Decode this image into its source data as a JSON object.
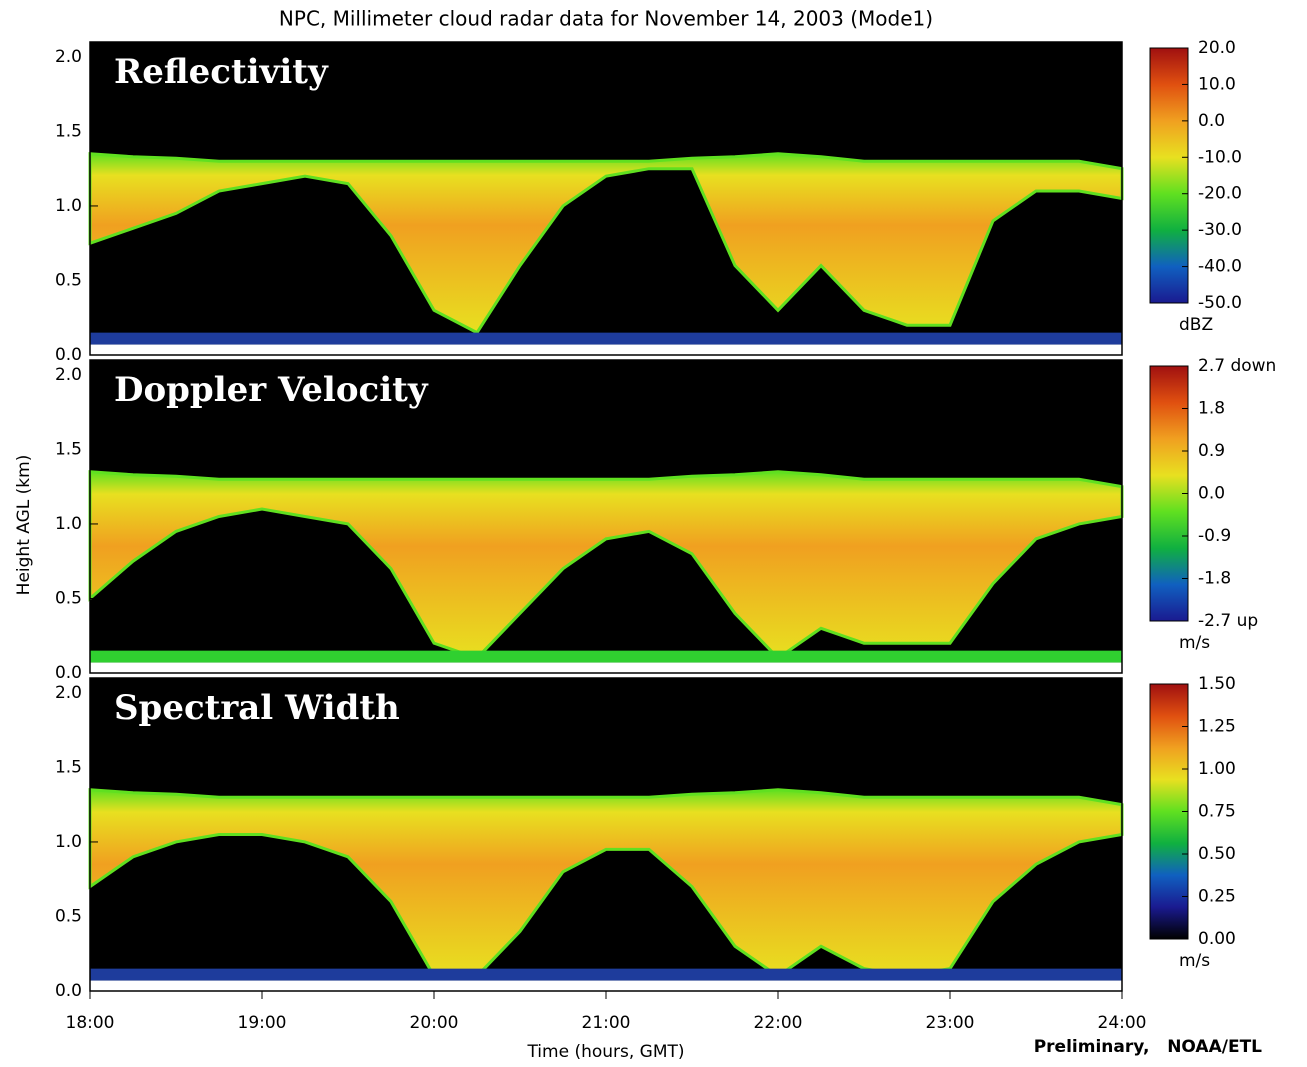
{
  "title": "NPC, Millimeter cloud radar data for November 14, 2003 (Mode1)",
  "y_label": "Height AGL (km)",
  "x_label": "Time (hours, GMT)",
  "credit": "Preliminary,   NOAA/ETL",
  "chart_data": [
    {
      "type": "heatmap",
      "title": "Reflectivity",
      "x": [
        18,
        18.25,
        18.5,
        18.75,
        19,
        19.25,
        19.5,
        19.75,
        20,
        20.25,
        20.5,
        20.75,
        21,
        21.25,
        21.5,
        21.75,
        22,
        22.25,
        22.5,
        22.75,
        23,
        23.25,
        23.5,
        23.75,
        24
      ],
      "cloud_top": [
        1.35,
        1.33,
        1.32,
        1.3,
        1.3,
        1.3,
        1.3,
        1.3,
        1.3,
        1.3,
        1.3,
        1.3,
        1.3,
        1.3,
        1.32,
        1.33,
        1.35,
        1.33,
        1.3,
        1.3,
        1.3,
        1.3,
        1.3,
        1.3,
        1.25
      ],
      "cloud_base": [
        0.75,
        0.85,
        0.95,
        1.1,
        1.15,
        1.2,
        1.15,
        0.8,
        0.3,
        0.15,
        0.6,
        1.0,
        1.2,
        1.25,
        1.25,
        0.6,
        0.3,
        0.6,
        0.3,
        0.2,
        0.2,
        0.9,
        1.1,
        1.1,
        1.05
      ],
      "xlim": [
        18,
        24
      ],
      "ylim": [
        0,
        2.1
      ],
      "yticks": [
        {
          "value": 0,
          "label": "0.0"
        },
        0.5,
        {
          "value": 1,
          "label": "1.0"
        },
        1.5,
        {
          "value": 2,
          "label": "2.0"
        }
      ],
      "colormap": [
        "#1a1a90",
        "#1060c0",
        "#10b040",
        "#60e020",
        "#e8e020",
        "#f0a020",
        "#e05010",
        "#a01010"
      ],
      "clutter_color": "#1e3c9c",
      "cbar_lim": [
        -50,
        20
      ],
      "cbar_ticks": [
        {
          "value": 20,
          "label": "20.0"
        },
        {
          "value": 10,
          "label": "10.0"
        },
        {
          "value": 0,
          "label": "0.0"
        },
        {
          "value": -10,
          "label": "-10.0"
        },
        {
          "value": -20,
          "label": "-20.0"
        },
        {
          "value": -30,
          "label": "-30.0"
        },
        {
          "value": -40,
          "label": "-40.0"
        },
        {
          "value": -50,
          "label": "-50.0"
        }
      ],
      "cbar_unit": "dBZ"
    },
    {
      "type": "heatmap",
      "title": "Doppler Velocity",
      "x": [
        18,
        18.25,
        18.5,
        18.75,
        19,
        19.25,
        19.5,
        19.75,
        20,
        20.25,
        20.5,
        20.75,
        21,
        21.25,
        21.5,
        21.75,
        22,
        22.25,
        22.5,
        22.75,
        23,
        23.25,
        23.5,
        23.75,
        24
      ],
      "cloud_top": [
        1.35,
        1.33,
        1.32,
        1.3,
        1.3,
        1.3,
        1.3,
        1.3,
        1.3,
        1.3,
        1.3,
        1.3,
        1.3,
        1.3,
        1.32,
        1.33,
        1.35,
        1.33,
        1.3,
        1.3,
        1.3,
        1.3,
        1.3,
        1.3,
        1.25
      ],
      "cloud_base": [
        0.5,
        0.75,
        0.95,
        1.05,
        1.1,
        1.05,
        1.0,
        0.7,
        0.2,
        0.1,
        0.4,
        0.7,
        0.9,
        0.95,
        0.8,
        0.4,
        0.1,
        0.3,
        0.2,
        0.2,
        0.2,
        0.6,
        0.9,
        1.0,
        1.05
      ],
      "xlim": [
        18,
        24
      ],
      "ylim": [
        0,
        2.1
      ],
      "yticks": [
        {
          "value": 0,
          "label": "0.0"
        },
        0.5,
        {
          "value": 1,
          "label": "1.0"
        },
        1.5,
        {
          "value": 2,
          "label": "2.0"
        }
      ],
      "colormap": [
        "#1a1a90",
        "#1060c0",
        "#10b040",
        "#60e020",
        "#e8e020",
        "#f0a020",
        "#e05010",
        "#a01010"
      ],
      "clutter_color": "#30d030",
      "cbar_lim": [
        -2.7,
        2.7
      ],
      "cbar_ticks": [
        {
          "value": 2.7,
          "label": "2.7 down"
        },
        1.8,
        0.9,
        {
          "value": 0,
          "label": "0.0"
        },
        -0.9,
        -1.8,
        {
          "value": -2.7,
          "label": "-2.7 up"
        }
      ],
      "cbar_unit": "m/s"
    },
    {
      "type": "heatmap",
      "title": "Spectral Width",
      "x": [
        18,
        18.25,
        18.5,
        18.75,
        19,
        19.25,
        19.5,
        19.75,
        20,
        20.25,
        20.5,
        20.75,
        21,
        21.25,
        21.5,
        21.75,
        22,
        22.25,
        22.5,
        22.75,
        23,
        23.25,
        23.5,
        23.75,
        24
      ],
      "cloud_top": [
        1.35,
        1.33,
        1.32,
        1.3,
        1.3,
        1.3,
        1.3,
        1.3,
        1.3,
        1.3,
        1.3,
        1.3,
        1.3,
        1.3,
        1.32,
        1.33,
        1.35,
        1.33,
        1.3,
        1.3,
        1.3,
        1.3,
        1.3,
        1.3,
        1.25
      ],
      "cloud_base": [
        0.7,
        0.9,
        1.0,
        1.05,
        1.05,
        1.0,
        0.9,
        0.6,
        0.1,
        0.1,
        0.4,
        0.8,
        0.95,
        0.95,
        0.7,
        0.3,
        0.1,
        0.3,
        0.15,
        0.1,
        0.15,
        0.6,
        0.85,
        1.0,
        1.05
      ],
      "xlim": [
        18,
        24
      ],
      "ylim": [
        0,
        2.1
      ],
      "yticks": [
        {
          "value": 0,
          "label": "0.0"
        },
        0.5,
        {
          "value": 1,
          "label": "1.0"
        },
        1.5,
        {
          "value": 2,
          "label": "2.0"
        }
      ],
      "xticks": [
        {
          "value": 18,
          "label": "18:00"
        },
        {
          "value": 19,
          "label": "19:00"
        },
        {
          "value": 20,
          "label": "20:00"
        },
        {
          "value": 21,
          "label": "21:00"
        },
        {
          "value": 22,
          "label": "22:00"
        },
        {
          "value": 23,
          "label": "23:00"
        },
        {
          "value": 24,
          "label": "24:00"
        }
      ],
      "colormap": [
        "#000000",
        "#1a1a90",
        "#1060c0",
        "#10b040",
        "#60e020",
        "#e8e020",
        "#f0a020",
        "#e05010",
        "#a01010"
      ],
      "clutter_color": "#1e3c9c",
      "cbar_lim": [
        0,
        1.5
      ],
      "cbar_ticks": [
        {
          "value": 1.5,
          "label": "1.50"
        },
        1.25,
        {
          "value": 1,
          "label": "1.00"
        },
        0.75,
        {
          "value": 0.5,
          "label": "0.50"
        },
        0.25,
        {
          "value": 0,
          "label": "0.00"
        }
      ],
      "cbar_unit": "m/s"
    }
  ]
}
